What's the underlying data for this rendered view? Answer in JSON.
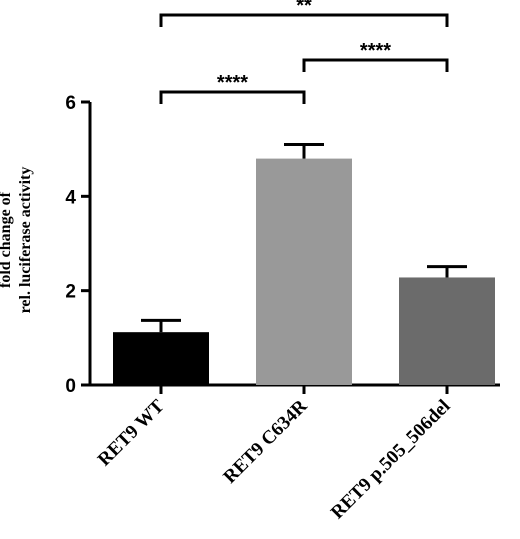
{
  "chart_data": {
    "type": "bar",
    "categories": [
      "RET9 WT",
      "RET9 C634R",
      "RET9 p.505_506del"
    ],
    "values": [
      1.12,
      4.8,
      2.28
    ],
    "errors": [
      0.25,
      0.3,
      0.23
    ],
    "colors": [
      "#000000",
      "#999999",
      "#6b6b6b"
    ],
    "ylabel_lines": [
      "fold change of",
      "rel. luciferase activity"
    ],
    "ylim": [
      0,
      6
    ],
    "yticks": [
      0,
      2,
      4,
      6
    ],
    "grid": false,
    "significance": [
      {
        "from": 0,
        "to": 1,
        "label": "****",
        "tier": 1
      },
      {
        "from": 1,
        "to": 2,
        "label": "****",
        "tier": 2
      },
      {
        "from": 0,
        "to": 2,
        "label": "**",
        "tier": 3
      }
    ]
  }
}
